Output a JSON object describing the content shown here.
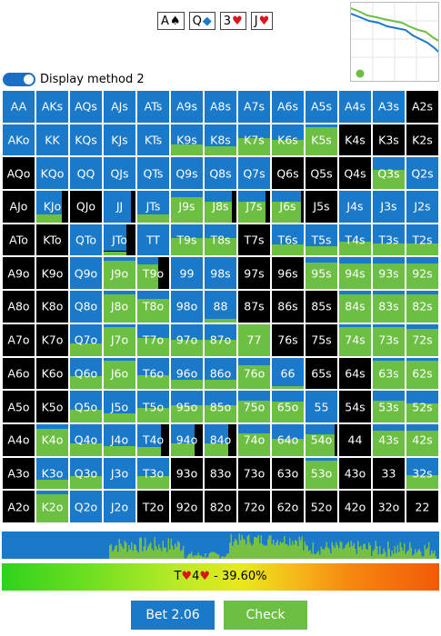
{
  "board": {
    "cards": [
      {
        "rank": "A",
        "suit": "♠",
        "color": "#000000"
      },
      {
        "rank": "Q",
        "suit": "◆",
        "color": "#1a79c9"
      },
      {
        "rank": "3",
        "suit": "♥",
        "color": "#d8161c"
      },
      {
        "rank": "J",
        "suit": "♥",
        "color": "#d8161c"
      }
    ]
  },
  "display_toggle": {
    "label": "Display method 2",
    "on": true
  },
  "colors": {
    "bet": "#1a79c9",
    "check": "#6cbf43",
    "fold": "#000000"
  },
  "grid": {
    "rows": [
      [
        "AA",
        "AKs",
        "AQs",
        "AJs",
        "ATs",
        "A9s",
        "A8s",
        "A7s",
        "A6s",
        "A5s",
        "A4s",
        "A3s",
        "A2s"
      ],
      [
        "AKo",
        "KK",
        "KQs",
        "KJs",
        "KTs",
        "K9s",
        "K8s",
        "K7s",
        "K6s",
        "K5s",
        "K4s",
        "K3s",
        "K2s"
      ],
      [
        "AQo",
        "KQo",
        "QQ",
        "QJs",
        "QTs",
        "Q9s",
        "Q8s",
        "Q7s",
        "Q6s",
        "Q5s",
        "Q4s",
        "Q3s",
        "Q2s"
      ],
      [
        "AJo",
        "KJo",
        "QJo",
        "JJ",
        "JTs",
        "J9s",
        "J8s",
        "J7s",
        "J6s",
        "J5s",
        "J4s",
        "J3s",
        "J2s"
      ],
      [
        "ATo",
        "KTo",
        "QTo",
        "JTo",
        "TT",
        "T9s",
        "T8s",
        "T7s",
        "T6s",
        "T5s",
        "T4s",
        "T3s",
        "T2s"
      ],
      [
        "A9o",
        "K9o",
        "Q9o",
        "J9o",
        "T9o",
        "99",
        "98s",
        "97s",
        "96s",
        "95s",
        "94s",
        "93s",
        "92s"
      ],
      [
        "A8o",
        "K8o",
        "Q8o",
        "J8o",
        "T8o",
        "98o",
        "88",
        "87s",
        "86s",
        "85s",
        "84s",
        "83s",
        "82s"
      ],
      [
        "A7o",
        "K7o",
        "Q7o",
        "J7o",
        "T7o",
        "97o",
        "87o",
        "77",
        "76s",
        "75s",
        "74s",
        "73s",
        "72s"
      ],
      [
        "A6o",
        "K6o",
        "Q6o",
        "J6o",
        "T6o",
        "96o",
        "86o",
        "76o",
        "66",
        "65s",
        "64s",
        "63s",
        "62s"
      ],
      [
        "A5o",
        "K5o",
        "Q5o",
        "J5o",
        "T5o",
        "95o",
        "85o",
        "75o",
        "65o",
        "55",
        "54s",
        "53s",
        "52s"
      ],
      [
        "A4o",
        "K4o",
        "Q4o",
        "J4o",
        "T4o",
        "94o",
        "84o",
        "74o",
        "64o",
        "54o",
        "44",
        "43s",
        "42s"
      ],
      [
        "A3o",
        "K3o",
        "Q3o",
        "J3o",
        "T3o",
        "93o",
        "83o",
        "73o",
        "63o",
        "53o",
        "43o",
        "33",
        "32s"
      ],
      [
        "A2o",
        "K2o",
        "Q2o",
        "J2o",
        "T2o",
        "92o",
        "82o",
        "72o",
        "62o",
        "52o",
        "42o",
        "32o",
        "22"
      ]
    ],
    "strategy": [
      [
        [
          1,
          0,
          0
        ],
        [
          1,
          0,
          0
        ],
        [
          1,
          0,
          0
        ],
        [
          1,
          0,
          0
        ],
        [
          1,
          0,
          0
        ],
        [
          1,
          0,
          0
        ],
        [
          1,
          0,
          0
        ],
        [
          1,
          0,
          0
        ],
        [
          1,
          0,
          0
        ],
        [
          1,
          0,
          0
        ],
        [
          1,
          0,
          0
        ],
        [
          1,
          0,
          0
        ],
        [
          0,
          0,
          1
        ]
      ],
      [
        [
          1,
          0,
          0
        ],
        [
          1,
          0,
          0
        ],
        [
          1,
          0,
          0
        ],
        [
          1,
          0,
          0
        ],
        [
          1,
          0,
          0
        ],
        [
          0.65,
          0.35,
          0
        ],
        [
          0.7,
          0.3,
          0
        ],
        [
          0.45,
          0.55,
          0
        ],
        [
          0.5,
          0.5,
          0
        ],
        [
          0.1,
          0.9,
          0
        ],
        [
          0,
          0,
          1
        ],
        [
          0,
          0,
          1
        ],
        [
          0,
          0,
          1
        ]
      ],
      [
        [
          0,
          0,
          1
        ],
        [
          1,
          0,
          0
        ],
        [
          1,
          0,
          0
        ],
        [
          1,
          0,
          0
        ],
        [
          1,
          0,
          0
        ],
        [
          1,
          0,
          0
        ],
        [
          1,
          0,
          0
        ],
        [
          1,
          0,
          0
        ],
        [
          0,
          0,
          1
        ],
        [
          0,
          0,
          1
        ],
        [
          0,
          0,
          1
        ],
        [
          0.4,
          0.6,
          0
        ],
        [
          1,
          0,
          0
        ]
      ],
      [
        [
          0,
          0,
          1
        ],
        [
          0.6,
          0.2,
          0.2
        ],
        [
          0,
          0,
          1
        ],
        [
          0.85,
          0,
          0.15
        ],
        [
          0.75,
          0.25,
          0
        ],
        [
          0.2,
          0.8,
          0
        ],
        [
          0.3,
          0.55,
          0.15
        ],
        [
          0.3,
          0.55,
          0.15
        ],
        [
          0.3,
          0.6,
          0.1
        ],
        [
          0,
          0,
          1
        ],
        [
          1,
          0,
          0
        ],
        [
          1,
          0,
          0
        ],
        [
          1,
          0,
          0
        ]
      ],
      [
        [
          0,
          0,
          1
        ],
        [
          0,
          0,
          1
        ],
        [
          1,
          0,
          0
        ],
        [
          0.6,
          0.1,
          0.3
        ],
        [
          1,
          0,
          0
        ],
        [
          0.45,
          0.55,
          0
        ],
        [
          0.45,
          0.55,
          0
        ],
        [
          0,
          0,
          1
        ],
        [
          0.65,
          0.35,
          0
        ],
        [
          0.7,
          0.3,
          0
        ],
        [
          0.55,
          0.45,
          0
        ],
        [
          0.6,
          0.4,
          0
        ],
        [
          0.6,
          0.4,
          0
        ]
      ],
      [
        [
          0,
          0,
          1
        ],
        [
          0,
          0,
          1
        ],
        [
          1,
          0,
          0
        ],
        [
          0.1,
          0.9,
          0
        ],
        [
          0.15,
          0.5,
          0.35
        ],
        [
          1,
          0,
          0
        ],
        [
          1,
          0,
          0
        ],
        [
          0,
          0,
          1
        ],
        [
          0,
          0,
          1
        ],
        [
          0.15,
          0.85,
          0
        ],
        [
          0.2,
          0.8,
          0
        ],
        [
          0.2,
          0.8,
          0
        ],
        [
          0.2,
          0.8,
          0
        ]
      ],
      [
        [
          0,
          0,
          1
        ],
        [
          0,
          0,
          1
        ],
        [
          1,
          0,
          0
        ],
        [
          0.1,
          0.9,
          0
        ],
        [
          0.25,
          0.75,
          0
        ],
        [
          1,
          0,
          0
        ],
        [
          0.9,
          0.1,
          0
        ],
        [
          0,
          0,
          1
        ],
        [
          0,
          0,
          1
        ],
        [
          0,
          0,
          1
        ],
        [
          0.1,
          0.9,
          0
        ],
        [
          0.1,
          0.9,
          0
        ],
        [
          0.1,
          0.9,
          0
        ]
      ],
      [
        [
          0,
          0,
          1
        ],
        [
          0,
          0,
          1
        ],
        [
          0.6,
          0.4,
          0
        ],
        [
          0.1,
          0.9,
          0
        ],
        [
          0.45,
          0.55,
          0
        ],
        [
          0.5,
          0.5,
          0
        ],
        [
          0.5,
          0.5,
          0
        ],
        [
          0,
          1,
          0
        ],
        [
          0,
          0,
          1
        ],
        [
          0,
          0,
          1
        ],
        [
          0.1,
          0.9,
          0
        ],
        [
          0.1,
          0.9,
          0
        ],
        [
          0.15,
          0.85,
          0
        ]
      ],
      [
        [
          0,
          0,
          1
        ],
        [
          0,
          0,
          1
        ],
        [
          0.6,
          0.4,
          0
        ],
        [
          0.1,
          0.9,
          0
        ],
        [
          0.55,
          0.45,
          0
        ],
        [
          0.7,
          0.3,
          0
        ],
        [
          0.7,
          0.3,
          0
        ],
        [
          0.25,
          0.75,
          0
        ],
        [
          0.9,
          0.1,
          0
        ],
        [
          0,
          0,
          1
        ],
        [
          0,
          0,
          1
        ],
        [
          0.1,
          0.9,
          0
        ],
        [
          0.1,
          0.9,
          0
        ]
      ],
      [
        [
          0,
          0,
          1
        ],
        [
          0,
          0,
          1
        ],
        [
          0.6,
          0.4,
          0
        ],
        [
          0.7,
          0.3,
          0
        ],
        [
          0.55,
          0.45,
          0
        ],
        [
          0.45,
          0.55,
          0
        ],
        [
          0.45,
          0.55,
          0
        ],
        [
          0.3,
          0.7,
          0
        ],
        [
          0.35,
          0.65,
          0
        ],
        [
          1,
          0,
          0
        ],
        [
          0,
          0,
          1
        ],
        [
          0.3,
          0.7,
          0
        ],
        [
          0.4,
          0.6,
          0
        ]
      ],
      [
        [
          0,
          0,
          1
        ],
        [
          0.15,
          0.85,
          0
        ],
        [
          0.6,
          0.4,
          0
        ],
        [
          0.7,
          0.3,
          0
        ],
        [
          0.55,
          0.2,
          0.25
        ],
        [
          0.45,
          0.3,
          0.25
        ],
        [
          0.45,
          0.3,
          0.25
        ],
        [
          0.3,
          0.7,
          0
        ],
        [
          0.45,
          0.55,
          0
        ],
        [
          0.3,
          0.6,
          0.1
        ],
        [
          0,
          0,
          1
        ],
        [
          0.2,
          0.8,
          0
        ],
        [
          0.2,
          0.8,
          0
        ]
      ],
      [
        [
          0,
          0,
          1
        ],
        [
          0.7,
          0.3,
          0
        ],
        [
          0.6,
          0.4,
          0
        ],
        [
          1,
          0,
          0
        ],
        [
          0.6,
          0.4,
          0
        ],
        [
          0,
          0,
          1
        ],
        [
          0,
          0,
          1
        ],
        [
          0,
          0,
          1
        ],
        [
          0,
          0,
          1
        ],
        [
          0.1,
          0.9,
          0
        ],
        [
          0,
          0,
          1
        ],
        [
          0,
          0,
          1
        ],
        [
          0.55,
          0.45,
          0
        ]
      ],
      [
        [
          0,
          0,
          1
        ],
        [
          0.1,
          0.9,
          0
        ],
        [
          1,
          0,
          0
        ],
        [
          1,
          0,
          0
        ],
        [
          0,
          0,
          1
        ],
        [
          0,
          0,
          1
        ],
        [
          0,
          0,
          1
        ],
        [
          0,
          0,
          1
        ],
        [
          0,
          0,
          1
        ],
        [
          0,
          0,
          1
        ],
        [
          0,
          0,
          1
        ],
        [
          0,
          0,
          1
        ],
        [
          0,
          0,
          1
        ]
      ]
    ]
  },
  "equity": {
    "hand_rank1": "T",
    "hand_rank2": "4",
    "suit": "♥",
    "text": " - 39.60%"
  },
  "actions": {
    "bet_label": "Bet 2.06",
    "check_label": "Check"
  }
}
